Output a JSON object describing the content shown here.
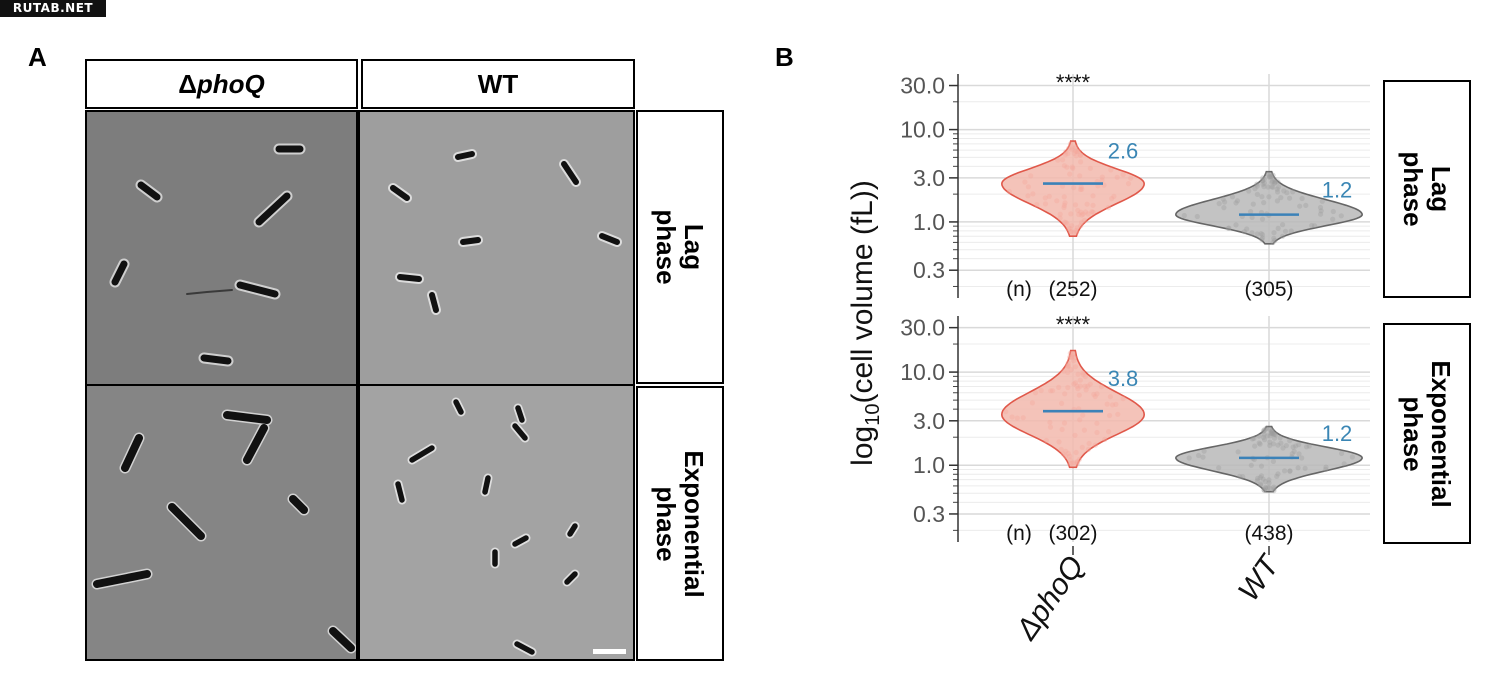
{
  "watermark": "RUTAB.NET",
  "panel_a": {
    "letter": "A",
    "col_headers": [
      {
        "symbol": "Δ",
        "gene": "phoQ"
      },
      {
        "symbol": "",
        "gene": "WT"
      }
    ],
    "row_labels": [
      {
        "line1": "Lag",
        "line2": "phase"
      },
      {
        "line1": "Exponential",
        "line2": "phase"
      }
    ]
  },
  "panel_b": {
    "letter": "B",
    "row_labels": [
      {
        "line1": "Lag",
        "line2": "phase"
      },
      {
        "line1": "Exponential",
        "line2": "phase"
      }
    ]
  },
  "colors": {
    "mutant_fill": "#f2b8ad",
    "mutant_line": "#e0584a",
    "wt_fill": "#b8b8b8",
    "wt_line": "#666666",
    "median_line": "#3b82b8",
    "median_label": "#3a86b4",
    "grid": "#d9d9d9"
  },
  "chart_data": {
    "type": "violin",
    "ylabel_prefix": "log",
    "ylabel_sub": "10",
    "ylabel_suffix": "(cell volume (fL))",
    "yscale": "log",
    "yticks": [
      "30.0",
      "10.0",
      "3.0",
      "1.0",
      "0.3"
    ],
    "ytick_values": [
      30,
      10,
      3,
      1,
      0.3
    ],
    "ylim": [
      0.15,
      40
    ],
    "categories": [
      "ΔphoQ",
      "WT"
    ],
    "n_label": "(n)",
    "panels": [
      {
        "name": "Lag phase",
        "significance": "****",
        "groups": [
          {
            "category": "ΔphoQ",
            "median": 2.6,
            "median_label": "2.6",
            "n_label": "(252)",
            "min": 0.7,
            "max": 7.5,
            "widest_at": 2.6
          },
          {
            "category": "WT",
            "median": 1.2,
            "median_label": "1.2",
            "n_label": "(305)",
            "min": 0.58,
            "max": 3.5,
            "widest_at": 1.2
          }
        ]
      },
      {
        "name": "Exponential phase",
        "significance": "****",
        "groups": [
          {
            "category": "ΔphoQ",
            "median": 3.8,
            "median_label": "3.8",
            "n_label": "(302)",
            "min": 0.95,
            "max": 17,
            "widest_at": 3.5
          },
          {
            "category": "WT",
            "median": 1.2,
            "median_label": "1.2",
            "n_label": "(438)",
            "min": 0.52,
            "max": 2.6,
            "widest_at": 1.2
          }
        ]
      }
    ]
  }
}
